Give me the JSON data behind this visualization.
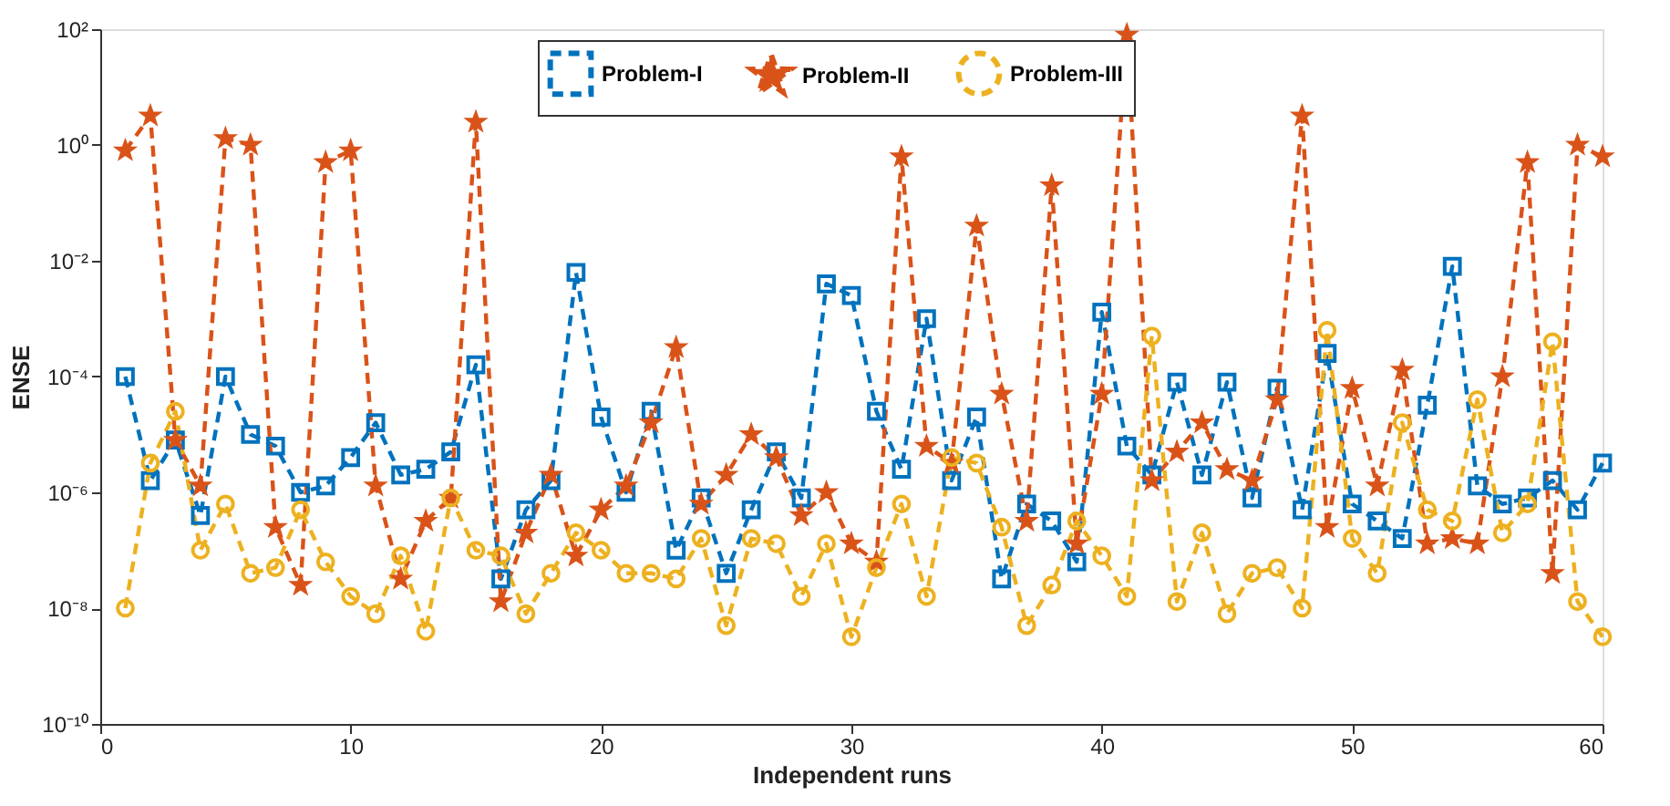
{
  "chart_data": {
    "type": "line",
    "xlabel": "Independent runs",
    "ylabel": "ENSE",
    "log": "y",
    "grid": false,
    "legend": "top",
    "line_style": "dashed",
    "x": [
      1,
      2,
      3,
      4,
      5,
      6,
      7,
      8,
      9,
      10,
      11,
      12,
      13,
      14,
      15,
      16,
      17,
      18,
      19,
      20,
      21,
      22,
      23,
      24,
      25,
      26,
      27,
      28,
      29,
      30,
      31,
      32,
      33,
      34,
      35,
      36,
      37,
      38,
      39,
      40,
      41,
      42,
      43,
      44,
      45,
      46,
      47,
      48,
      49,
      50,
      51,
      52,
      53,
      54,
      55,
      56,
      57,
      58,
      59,
      60
    ],
    "xlim": [
      0,
      60
    ],
    "xticks": [
      0,
      10,
      20,
      30,
      40,
      50,
      60
    ],
    "ylim": [
      1e-10,
      100
    ],
    "yticks": [
      {
        "value": 1e-10,
        "label": "10⁻¹⁰"
      },
      {
        "value": 1e-08,
        "label": "10⁻⁸"
      },
      {
        "value": 1e-06,
        "label": "10⁻⁶"
      },
      {
        "value": 0.0001,
        "label": "10⁻⁴"
      },
      {
        "value": 0.01,
        "label": "10⁻²"
      },
      {
        "value": 1,
        "label": "10⁰"
      },
      {
        "value": 100,
        "label": "10²"
      }
    ],
    "series": [
      {
        "name": "Problem-I",
        "color": "#0072bd",
        "marker": "square",
        "values": [
          0.0001,
          1.6e-06,
          8e-06,
          4e-07,
          0.0001,
          1e-05,
          6.3e-06,
          1e-06,
          1.3e-06,
          4e-06,
          1.6e-05,
          2e-06,
          2.5e-06,
          5e-06,
          0.00016,
          3.2e-08,
          5e-07,
          1.6e-06,
          0.0063,
          2e-05,
          1e-06,
          2.5e-05,
          1e-07,
          8e-07,
          4e-08,
          5e-07,
          5e-06,
          8e-07,
          0.004,
          0.0025,
          2.5e-05,
          2.5e-06,
          0.001,
          1.6e-06,
          2e-05,
          3.2e-08,
          6.3e-07,
          3.2e-07,
          6.3e-08,
          0.0013,
          6.3e-06,
          2e-06,
          8e-05,
          2e-06,
          8e-05,
          8e-07,
          6.3e-05,
          5e-07,
          0.00025,
          6.3e-07,
          3.2e-07,
          1.6e-07,
          3.2e-05,
          0.008,
          1.3e-06,
          6.3e-07,
          8e-07,
          1.6e-06,
          5e-07,
          3.2e-06
        ]
      },
      {
        "name": "Problem-II",
        "color": "#d95319",
        "marker": "star",
        "values": [
          0.8,
          3.2,
          8e-06,
          1.3e-06,
          1.3,
          1,
          2.5e-07,
          2.5e-08,
          0.5,
          0.8,
          1.3e-06,
          3.2e-08,
          3.2e-07,
          8e-07,
          2.5,
          1.3e-08,
          2e-07,
          2e-06,
          8e-08,
          5e-07,
          1.3e-06,
          1.6e-05,
          0.00032,
          6.3e-07,
          2e-06,
          1e-05,
          4e-06,
          4e-07,
          1e-06,
          1.3e-07,
          6.3e-08,
          0.63,
          6.3e-06,
          3.2e-06,
          0.04,
          5e-05,
          3.2e-07,
          0.2,
          1.3e-07,
          5e-05,
          80,
          1.6e-06,
          5e-06,
          1.6e-05,
          2.5e-06,
          1.6e-06,
          4e-05,
          3.2,
          2.5e-07,
          6.3e-05,
          1.3e-06,
          0.00013,
          1.3e-07,
          1.6e-07,
          1.3e-07,
          0.0001,
          0.5,
          4e-08,
          1,
          0.63
        ]
      },
      {
        "name": "Problem-III",
        "color": "#edb120",
        "marker": "circle",
        "values": [
          1e-08,
          3.2e-06,
          2.5e-05,
          1e-07,
          6.3e-07,
          4e-08,
          5e-08,
          5e-07,
          6.3e-08,
          1.6e-08,
          8e-09,
          8e-08,
          4e-09,
          8e-07,
          1e-07,
          8e-08,
          8e-09,
          4e-08,
          2e-07,
          1e-07,
          4e-08,
          4e-08,
          3.2e-08,
          1.6e-07,
          5e-09,
          1.6e-07,
          1.3e-07,
          1.6e-08,
          1.3e-07,
          3.2e-09,
          5e-08,
          6.3e-07,
          1.6e-08,
          4e-06,
          3.2e-06,
          2.5e-07,
          5e-09,
          2.5e-08,
          3.2e-07,
          8e-08,
          1.6e-08,
          0.0005,
          1.3e-08,
          2e-07,
          8e-09,
          4e-08,
          5e-08,
          1e-08,
          0.00063,
          1.6e-07,
          4e-08,
          1.6e-05,
          5e-07,
          3.2e-07,
          4e-05,
          2e-07,
          6.3e-07,
          0.0004,
          1.3e-08,
          3.2e-09
        ]
      }
    ]
  }
}
